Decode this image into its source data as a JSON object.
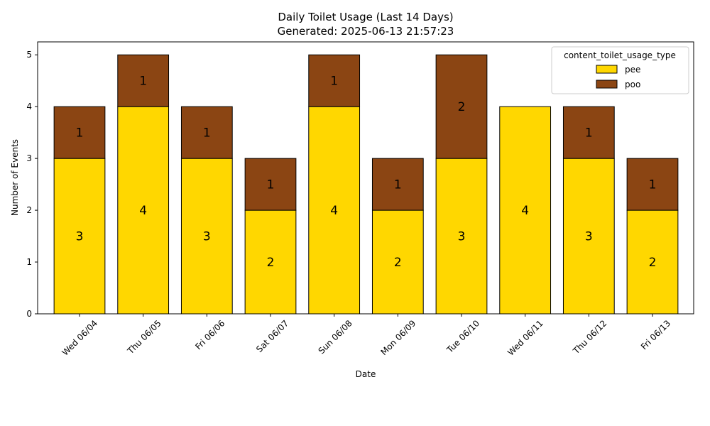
{
  "chart_data": {
    "type": "bar",
    "stacked": true,
    "title": "Daily Toilet Usage (Last 14 Days)",
    "subtitle": "Generated: 2025-06-13 21:57:23",
    "xlabel": "Date",
    "ylabel": "Number of Events",
    "ylim": [
      0,
      5.25
    ],
    "yticks": [
      0,
      1,
      2,
      3,
      4,
      5
    ],
    "categories": [
      "Wed 06/04",
      "Thu 06/05",
      "Fri 06/06",
      "Sat 06/07",
      "Sun 06/08",
      "Mon 06/09",
      "Tue 06/10",
      "Wed 06/11",
      "Thu 06/12",
      "Fri 06/13"
    ],
    "series": [
      {
        "name": "pee",
        "color": "#FFD700",
        "values": [
          3,
          4,
          3,
          2,
          4,
          2,
          3,
          4,
          3,
          2
        ]
      },
      {
        "name": "poo",
        "color": "#8B4513",
        "values": [
          1,
          1,
          1,
          1,
          1,
          1,
          2,
          0,
          1,
          1
        ]
      }
    ],
    "legend": {
      "title": "content_toilet_usage_type",
      "placement": "top-right"
    },
    "grid": false
  }
}
